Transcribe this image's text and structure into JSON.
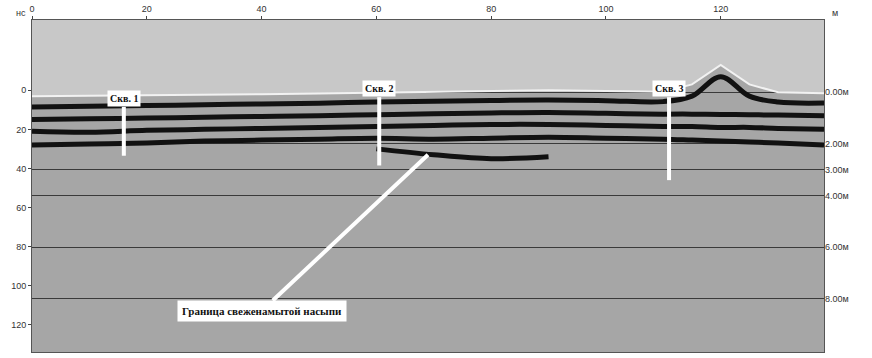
{
  "chart_data": {
    "type": "line",
    "xlabel": "м",
    "ylabel": "нс",
    "x": [
      0,
      10,
      20,
      30,
      40,
      50,
      60,
      70,
      80,
      90,
      100,
      110,
      115,
      120,
      125,
      130,
      138
    ],
    "xlim": [
      0,
      138
    ],
    "xticks": [
      0,
      20,
      40,
      60,
      80,
      100,
      120
    ],
    "ylim": [
      -36,
      134
    ],
    "yticks": [
      0,
      20,
      40,
      60,
      80,
      100,
      120
    ],
    "y2lim": [
      -2.8,
      10.07
    ],
    "y2ticks": [
      {
        "value": 0,
        "label": "0.00м"
      },
      {
        "value": 2,
        "label": "2.00м"
      },
      {
        "value": 3,
        "label": "3.00м"
      },
      {
        "value": 4,
        "label": "4.00м"
      },
      {
        "value": 6,
        "label": "6.00м"
      },
      {
        "value": 8,
        "label": "8.00м"
      }
    ],
    "grid": true,
    "surface": {
      "color": "#c8c8c8",
      "values": [
        3,
        2.8,
        2.5,
        2.2,
        2,
        1.6,
        1.2,
        0.8,
        0.4,
        0,
        0.3,
        0.8,
        -3,
        -13,
        -3,
        1,
        1.5
      ]
    },
    "series": [
      {
        "color": "#111111",
        "values": [
          8.5,
          8.2,
          7.8,
          7.4,
          7,
          6.6,
          6,
          5.6,
          5.2,
          5,
          5.3,
          5.8,
          3,
          -7,
          3,
          6,
          6.5
        ]
      },
      {
        "color": "#111111",
        "values": [
          15,
          14.6,
          14.2,
          13.8,
          13.4,
          13,
          12.5,
          12,
          11.6,
          11.4,
          11.8,
          12.2,
          12.2,
          12.4,
          12.5,
          12.7,
          13
        ]
      },
      {
        "color": "#111111",
        "values": [
          21,
          21.5,
          20.5,
          20,
          19.5,
          19,
          18.5,
          18,
          17.5,
          17.5,
          18,
          18.5,
          18.5,
          19,
          19,
          19.5,
          20
        ]
      },
      {
        "color": "#111111",
        "values": [
          28,
          27.5,
          27,
          26,
          25.5,
          25,
          24.5,
          25,
          24.5,
          24,
          24.5,
          25,
          25.5,
          26,
          26.5,
          27,
          28
        ]
      },
      {
        "color": "#111111",
        "values": [
          null,
          null,
          null,
          null,
          null,
          null,
          30,
          33,
          35,
          34,
          null,
          null,
          null,
          null,
          null,
          null,
          null
        ]
      }
    ],
    "boreholes": [
      {
        "label": "Скв. 1",
        "x": 16,
        "top": 8.5,
        "bottom": 33.5
      },
      {
        "label": "Скв. 2",
        "x": 60.5,
        "top": 3.5,
        "bottom": 38.5
      },
      {
        "label": "Скв. 3",
        "x": 111,
        "top": 3.5,
        "bottom": 46
      }
    ],
    "borehole_color": "#ffffff",
    "annotations": [
      {
        "text": "Граница свеженамытой насыпи",
        "x": 69,
        "y": 33,
        "text_x": 40,
        "text_y": 113
      }
    ]
  }
}
